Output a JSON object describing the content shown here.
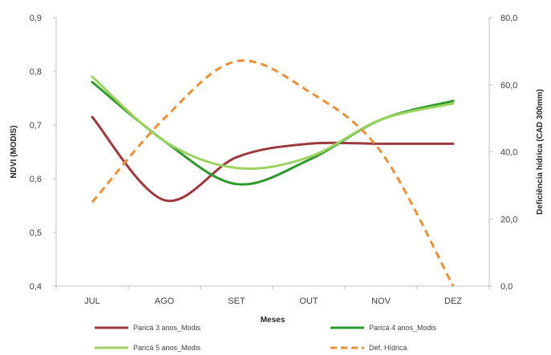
{
  "chart_data": {
    "type": "line",
    "categories": [
      "JUL",
      "AGO",
      "SET",
      "OUT",
      "NOV",
      "DEZ"
    ],
    "xlabel": "Meses",
    "ylabel_left": "NDVI (MODIS)",
    "ylabel_right": "Deficiência hídrica (CAD 300mm)",
    "ylim_left": [
      0.4,
      0.9
    ],
    "yticks_left": [
      "0,4",
      "0,5",
      "0,6",
      "0,7",
      "0,8",
      "0,9"
    ],
    "ylim_right": [
      0,
      80
    ],
    "yticks_right": [
      "0,0",
      "20,0",
      "40,0",
      "60,0",
      "80,0"
    ],
    "series": [
      {
        "name": "Paricá 3 anos_Modis",
        "axis": "left",
        "color": "#9b3a3f",
        "dash": false,
        "values": [
          0.715,
          0.56,
          0.64,
          0.665,
          0.665,
          0.665
        ]
      },
      {
        "name": "Paricá 4 anos_Modis",
        "axis": "left",
        "color": "#2e9a2e",
        "dash": false,
        "values": [
          0.78,
          0.67,
          0.59,
          0.635,
          0.71,
          0.745
        ]
      },
      {
        "name": "Paricá 5 anos_Modis",
        "axis": "left",
        "color": "#9bd260",
        "dash": false,
        "values": [
          0.79,
          0.67,
          0.62,
          0.64,
          0.71,
          0.74
        ]
      },
      {
        "name": "Def. Hídrica",
        "axis": "right",
        "color": "#e8913a",
        "dash": true,
        "values": [
          25,
          50,
          67,
          58,
          40,
          0
        ]
      }
    ],
    "grid": false,
    "legend": "bottom"
  }
}
